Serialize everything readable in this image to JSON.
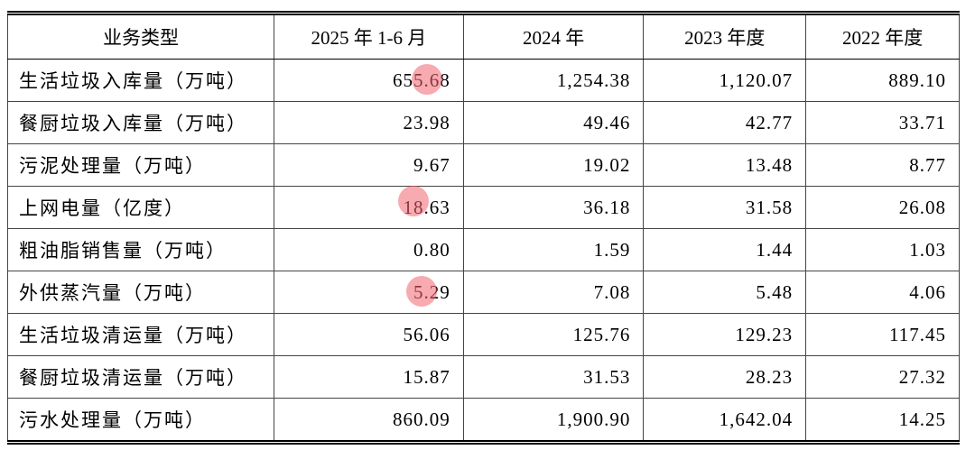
{
  "table": {
    "header": [
      "业务类型",
      "2025 年 1-6 月",
      "2024 年",
      "2023 年度",
      "2022 年度"
    ],
    "rows": [
      [
        "生活垃圾入库量（万吨）",
        "655.68",
        "1,254.38",
        "1,120.07",
        "889.10"
      ],
      [
        "餐厨垃圾入库量（万吨）",
        "23.98",
        "49.46",
        "42.77",
        "33.71"
      ],
      [
        "污泥处理量（万吨）",
        "9.67",
        "19.02",
        "13.48",
        "8.77"
      ],
      [
        "上网电量（亿度）",
        "18.63",
        "36.18",
        "31.58",
        "26.08"
      ],
      [
        "粗油脂销售量（万吨）",
        "0.80",
        "1.59",
        "1.44",
        "1.03"
      ],
      [
        "外供蒸汽量（万吨）",
        "5.29",
        "7.08",
        "5.48",
        "4.06"
      ],
      [
        "生活垃圾清运量（万吨）",
        "56.06",
        "125.76",
        "129.23",
        "117.45"
      ],
      [
        "餐厨垃圾清运量（万吨）",
        "15.87",
        "31.53",
        "28.23",
        "27.32"
      ],
      [
        "污水处理量（万吨）",
        "860.09",
        "1,900.90",
        "1,642.04",
        "14.25"
      ]
    ]
  }
}
